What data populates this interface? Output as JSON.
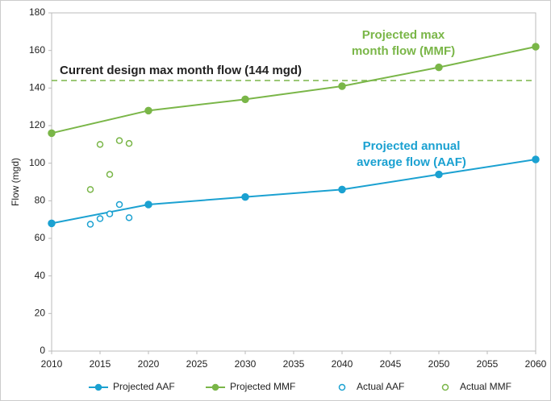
{
  "chart_data": {
    "type": "line",
    "y_label": "Flow (mgd)",
    "xlim": [
      2010,
      2060
    ],
    "xticks": [
      2010,
      2015,
      2020,
      2025,
      2030,
      2035,
      2040,
      2045,
      2050,
      2055,
      2060
    ],
    "ylim": [
      0,
      180
    ],
    "yticks": [
      0,
      20,
      40,
      60,
      80,
      100,
      120,
      140,
      160,
      180
    ],
    "grid": false,
    "legend": "bottom",
    "series": [
      {
        "name": "Projected AAF",
        "color": "#1ba1d1",
        "style": "line",
        "marker": "filled",
        "x": [
          2010,
          2020,
          2030,
          2040,
          2050,
          2060
        ],
        "values": [
          68,
          78,
          82,
          86,
          94,
          102
        ]
      },
      {
        "name": "Projected MMF",
        "color": "#7ab648",
        "style": "line",
        "marker": "filled",
        "x": [
          2010,
          2020,
          2030,
          2040,
          2050,
          2060
        ],
        "values": [
          116,
          128,
          134,
          141,
          151,
          162
        ]
      },
      {
        "name": "Actual AAF",
        "color": "#1ba1d1",
        "style": "markers",
        "marker": "open",
        "x": [
          2014,
          2015,
          2016,
          2017,
          2018
        ],
        "values": [
          67.5,
          70.5,
          73,
          78,
          71
        ]
      },
      {
        "name": "Actual MMF",
        "color": "#7ab648",
        "style": "markers",
        "marker": "open",
        "x": [
          2014,
          2015,
          2016,
          2017,
          2018
        ],
        "values": [
          86,
          110,
          94,
          112,
          110.5
        ]
      }
    ],
    "reference_lines": [
      {
        "value": 144,
        "label": "Current design max month flow (144 mgd)",
        "color": "#7ab648"
      }
    ],
    "annotations": [
      {
        "lines": [
          "Projected max",
          "month flow (MMF)"
        ],
        "color": "#7ab648"
      },
      {
        "lines": [
          "Projected annual",
          "average flow (AAF)"
        ],
        "color": "#1ba1d1"
      }
    ]
  }
}
